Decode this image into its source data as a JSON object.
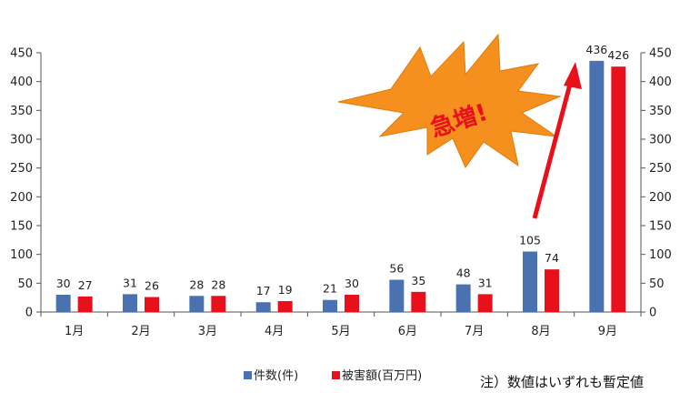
{
  "chart_data": {
    "type": "bar",
    "categories": [
      "1月",
      "2月",
      "3月",
      "4月",
      "5月",
      "6月",
      "7月",
      "8月",
      "9月"
    ],
    "series": [
      {
        "name": "件数(件)",
        "values": [
          30,
          31,
          28,
          17,
          21,
          56,
          48,
          105,
          436
        ]
      },
      {
        "name": "被害額(百万円)",
        "values": [
          27,
          26,
          28,
          19,
          30,
          35,
          31,
          74,
          426
        ]
      }
    ],
    "ylim": [
      0,
      450
    ],
    "yticks": [
      0,
      50,
      100,
      150,
      200,
      250,
      300,
      350,
      400,
      450
    ],
    "left_axis": true,
    "right_axis": true,
    "grid": false,
    "legend_position": "bottom",
    "colors": {
      "series_1": "#4a72b0",
      "series_2": "#e8101a",
      "burst": "#f5901e",
      "arrow": "#e8101a"
    },
    "annotation": "急増!",
    "note": "注）数値はいずれも暫定値"
  }
}
